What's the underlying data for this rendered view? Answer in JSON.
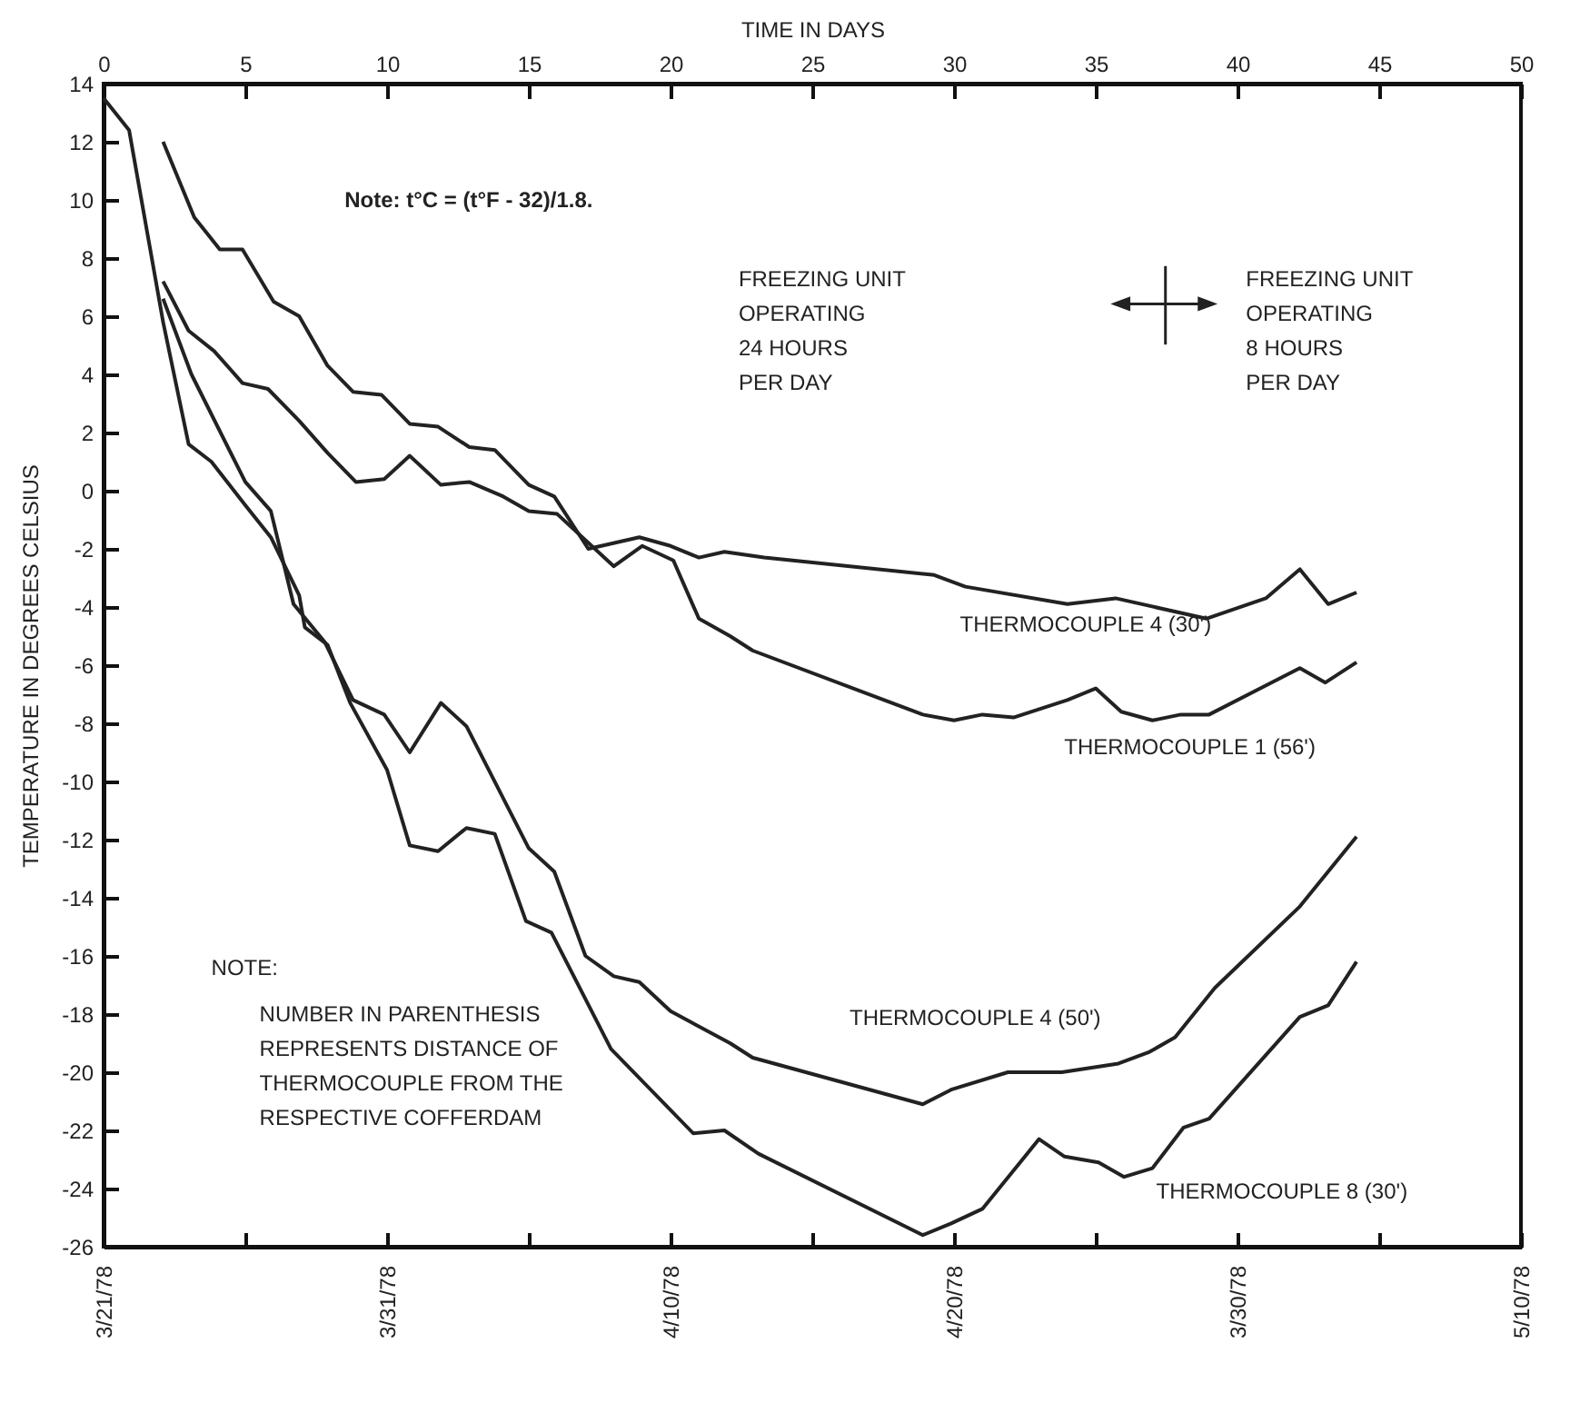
{
  "chart_data": {
    "type": "line",
    "ylabel": "TEMPERATURE IN DEGREES CELSIUS",
    "xlabel": "TIME IN DAYS",
    "xlim": [
      0,
      50
    ],
    "xticks": [
      0,
      5,
      10,
      15,
      20,
      25,
      30,
      35,
      40,
      45,
      50
    ],
    "x2lim": [
      "1978-03-21",
      "1978-05-10"
    ],
    "x2ticks": [
      {
        "value": "1978-03-21",
        "label": "3/21/78"
      },
      {
        "value": "1978-03-26",
        "label": null
      },
      {
        "value": "1978-03-31",
        "label": "3/31/78"
      },
      {
        "value": "1978-04-05",
        "label": null
      },
      {
        "value": "1978-04-10",
        "label": "4/10/78"
      },
      {
        "value": "1978-04-15",
        "label": null
      },
      {
        "value": "1978-04-20",
        "label": "4/20/78"
      },
      {
        "value": "1978-04-25",
        "label": null
      },
      {
        "value": "1978-04-30",
        "label": "3/30/78"
      },
      {
        "value": "1978-05-05",
        "label": null
      },
      {
        "value": "1978-05-10",
        "label": "5/10/78"
      }
    ],
    "ylim": [
      -26,
      14
    ],
    "yticks": [
      -26,
      -24,
      -22,
      -20,
      -18,
      -16,
      -14,
      -12,
      -10,
      -8,
      -6,
      -4,
      -2,
      0,
      2,
      4,
      6,
      8,
      10,
      12,
      14
    ],
    "grid": false,
    "marker": "none",
    "line_style": "solid",
    "series": [
      {
        "name": "THERMOCOUPLE 4 (30')",
        "color": "#222222",
        "x": [
          2.1,
          3.2,
          4.1,
          4.9,
          6.0,
          6.9,
          7.9,
          8.8,
          9.8,
          10.8,
          11.8,
          12.9,
          13.8,
          15.0,
          15.9,
          17.1,
          18.9,
          20.0,
          21.0,
          21.9,
          23.3,
          29.3,
          30.4,
          34.0,
          35.7,
          38.9,
          41.0,
          42.2,
          43.2,
          44.2
        ],
        "values": [
          12.0,
          9.4,
          8.3,
          8.3,
          6.5,
          6.0,
          4.3,
          3.4,
          3.3,
          2.3,
          2.2,
          1.5,
          1.4,
          0.2,
          -0.2,
          -2.0,
          -1.6,
          -1.9,
          -2.3,
          -2.1,
          -2.3,
          -2.9,
          -3.3,
          -3.9,
          -3.7,
          -4.4,
          -3.7,
          -2.7,
          -3.9,
          -3.5
        ]
      },
      {
        "name": "THERMOCOUPLE 1 (56')",
        "color": "#222222",
        "x": [
          2.1,
          3.0,
          3.9,
          4.9,
          5.8,
          6.9,
          7.9,
          8.9,
          9.9,
          10.8,
          11.9,
          12.9,
          14.1,
          15.0,
          16.0,
          18.0,
          19.0,
          20.1,
          21.0,
          22.1,
          22.9,
          28.9,
          30.0,
          31.0,
          32.1,
          34.0,
          35.0,
          35.9,
          37.0,
          38.0,
          39.0,
          42.2,
          43.1,
          44.2
        ],
        "values": [
          7.2,
          5.5,
          4.8,
          3.7,
          3.5,
          2.4,
          1.3,
          0.3,
          0.4,
          1.2,
          0.2,
          0.3,
          -0.2,
          -0.7,
          -0.8,
          -2.6,
          -1.9,
          -2.4,
          -4.4,
          -5.0,
          -5.5,
          -7.7,
          -7.9,
          -7.7,
          -7.8,
          -7.2,
          -6.8,
          -7.6,
          -7.9,
          -7.7,
          -7.7,
          -6.1,
          -6.6,
          -5.9
        ]
      },
      {
        "name": "THERMOCOUPLE 4 (50')",
        "color": "#222222",
        "x": [
          2.1,
          3.1,
          5.0,
          5.9,
          6.7,
          7.8,
          8.8,
          9.9,
          10.8,
          11.9,
          12.8,
          15.0,
          15.9,
          17.0,
          18.0,
          18.9,
          20.0,
          22.1,
          22.9,
          28.9,
          29.9,
          31.9,
          33.8,
          35.8,
          36.9,
          37.8,
          39.2,
          42.2,
          44.2
        ],
        "values": [
          6.6,
          4.0,
          0.3,
          -0.7,
          -3.9,
          -5.2,
          -7.2,
          -7.7,
          -9.0,
          -7.3,
          -8.1,
          -12.3,
          -13.1,
          -16.0,
          -16.7,
          -16.9,
          -17.9,
          -19.0,
          -19.5,
          -21.1,
          -20.6,
          -20.0,
          -20.0,
          -19.7,
          -19.3,
          -18.8,
          -17.1,
          -14.3,
          -11.9
        ]
      },
      {
        "name": "THERMOCOUPLE 8 (30')",
        "color": "#222222",
        "x": [
          0.0,
          0.9,
          2.1,
          3.0,
          3.8,
          5.0,
          5.9,
          6.9,
          7.1,
          7.9,
          8.7,
          10.0,
          10.8,
          11.8,
          12.8,
          13.8,
          14.9,
          15.8,
          17.9,
          20.8,
          21.9,
          23.1,
          28.9,
          29.9,
          31.0,
          33.0,
          33.9,
          35.1,
          36.0,
          37.0,
          38.1,
          39.0,
          42.2,
          43.2,
          44.2
        ],
        "values": [
          13.5,
          12.4,
          5.8,
          1.6,
          1.0,
          -0.5,
          -1.6,
          -3.6,
          -4.7,
          -5.3,
          -7.3,
          -9.6,
          -12.2,
          -12.4,
          -11.6,
          -11.8,
          -14.8,
          -15.2,
          -19.2,
          -22.1,
          -22.0,
          -22.8,
          -25.6,
          -25.2,
          -24.7,
          -22.3,
          -22.9,
          -23.1,
          -23.6,
          -23.3,
          -21.9,
          -21.6,
          -18.1,
          -17.7,
          -16.2
        ]
      }
    ],
    "annotations": [
      "Note:  t°C = (t°F - 32)/1.8.",
      "FREEZING UNIT\nOPERATING\n24 HOURS\nPER DAY",
      "FREEZING UNIT\nOPERATING\n8 HOURS\nPER DAY",
      "NOTE:",
      "NUMBER IN PARENTHESIS\nREPRESENTS DISTANCE OF\nTHERMOCOUPLE FROM THE\nRESPECTIVE COFFERDAM"
    ]
  }
}
